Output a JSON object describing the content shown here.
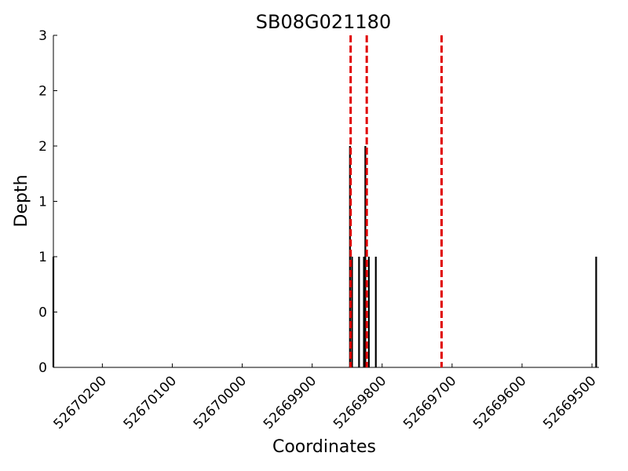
{
  "chart_data": {
    "type": "bar",
    "title": "SB08G021180",
    "xlabel": "Coordinates",
    "ylabel": "Depth",
    "x_reversed": true,
    "xlim": [
      52670270,
      52669490
    ],
    "ylim": [
      0,
      3
    ],
    "x_ticks": [
      52670200,
      52670100,
      52670000,
      52669900,
      52669800,
      52669700,
      52669600,
      52669500
    ],
    "y_ticks": [
      0,
      0.5,
      1,
      1.5,
      2,
      2.5,
      3
    ],
    "y_tick_labels": [
      "0",
      "0",
      "1",
      "1",
      "2",
      "2",
      "3"
    ],
    "grid": false,
    "bar_color": "#000000",
    "marker_color": "#e00000",
    "bars": [
      {
        "x": 52670270,
        "depth": 1
      },
      {
        "x": 52669846,
        "depth": 2
      },
      {
        "x": 52669843,
        "depth": 1
      },
      {
        "x": 52669833,
        "depth": 1
      },
      {
        "x": 52669826,
        "depth": 1
      },
      {
        "x": 52669824,
        "depth": 2
      },
      {
        "x": 52669819,
        "depth": 1
      },
      {
        "x": 52669809,
        "depth": 1
      },
      {
        "x": 52669494,
        "depth": 1
      }
    ],
    "markers": [
      52669845,
      52669822,
      52669715
    ]
  }
}
